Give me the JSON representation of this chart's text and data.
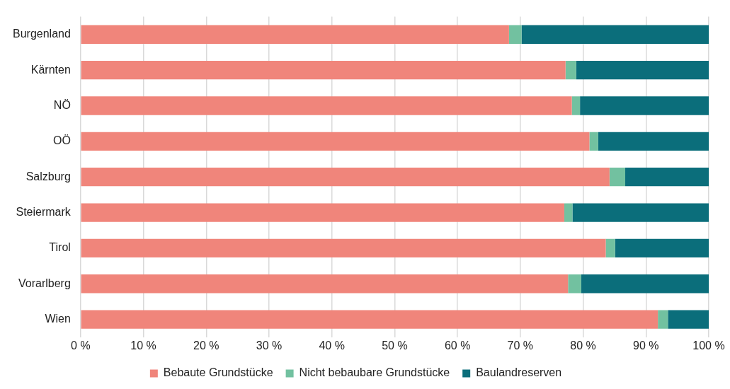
{
  "chart_data": {
    "type": "bar",
    "orientation": "horizontal",
    "stacked": true,
    "categories": [
      "Burgenland",
      "Kärnten",
      "NÖ",
      "OÖ",
      "Salzburg",
      "Steiermark",
      "Tirol",
      "Vorarlberg",
      "Wien"
    ],
    "series": [
      {
        "name": "Bebaute Grundstücke",
        "color": "#f0857b",
        "values": [
          68.2,
          77.2,
          78.2,
          81.0,
          84.2,
          77.0,
          83.6,
          77.6,
          91.9
        ]
      },
      {
        "name": "Nicht bebaubare Grundstücke",
        "color": "#72c1a0",
        "values": [
          2.0,
          1.7,
          1.3,
          1.4,
          2.5,
          1.3,
          1.5,
          2.1,
          1.6
        ]
      },
      {
        "name": "Baulandreserven",
        "color": "#0b6e7b",
        "values": [
          29.8,
          21.1,
          20.5,
          17.6,
          13.3,
          21.7,
          14.9,
          20.3,
          6.5
        ]
      }
    ],
    "xlim": [
      0,
      100
    ],
    "xticks": [
      {
        "value": 0,
        "label": "0 %"
      },
      {
        "value": 10,
        "label": "10 %"
      },
      {
        "value": 20,
        "label": "20 %"
      },
      {
        "value": 30,
        "label": "30 %"
      },
      {
        "value": 40,
        "label": "40 %"
      },
      {
        "value": 50,
        "label": "50 %"
      },
      {
        "value": 60,
        "label": "60 %"
      },
      {
        "value": 70,
        "label": "70 %"
      },
      {
        "value": 80,
        "label": "80 %"
      },
      {
        "value": 90,
        "label": "90 %"
      },
      {
        "value": 100,
        "label": "100 %"
      }
    ],
    "grid": "x",
    "legend": "bottom"
  }
}
